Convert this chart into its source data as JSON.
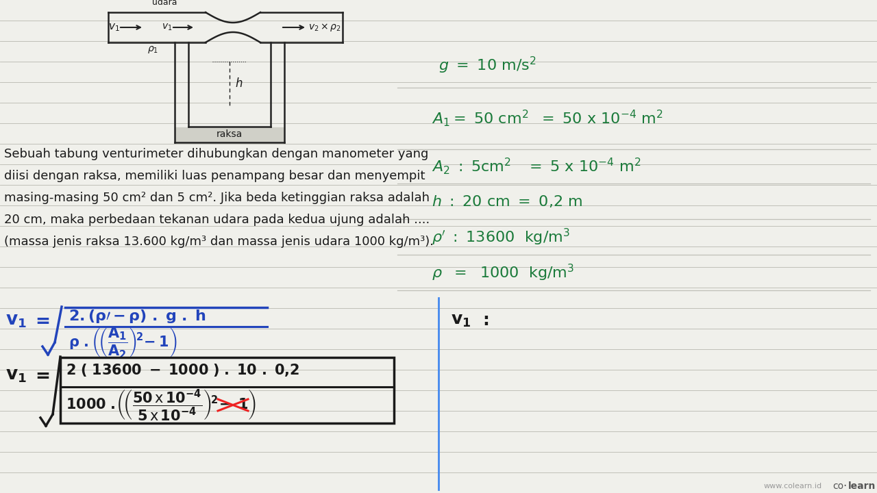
{
  "bg_color": "#f0f0eb",
  "line_color": "#c0c0b8",
  "text_color_black": "#1a1a1a",
  "text_color_blue": "#2244bb",
  "text_color_green": "#1a7a3a",
  "text_color_red": "#cc2222",
  "pipe_color": "#222222",
  "problem_text": [
    "Sebuah tabung venturimeter dihubungkan dengan manometer yang",
    "diisi dengan raksa, memiliki luas penampang besar dan menyempit",
    "masing-masing 50 cm² dan 5 cm². Jika beda ketinggian raksa adalah",
    "20 cm, maka perbedaan tekanan udara pada kedua ujung adalah ....",
    "(massa jenis raksa 13.600 kg/m³ dan massa jenis udara 1000 kg/m³)."
  ]
}
